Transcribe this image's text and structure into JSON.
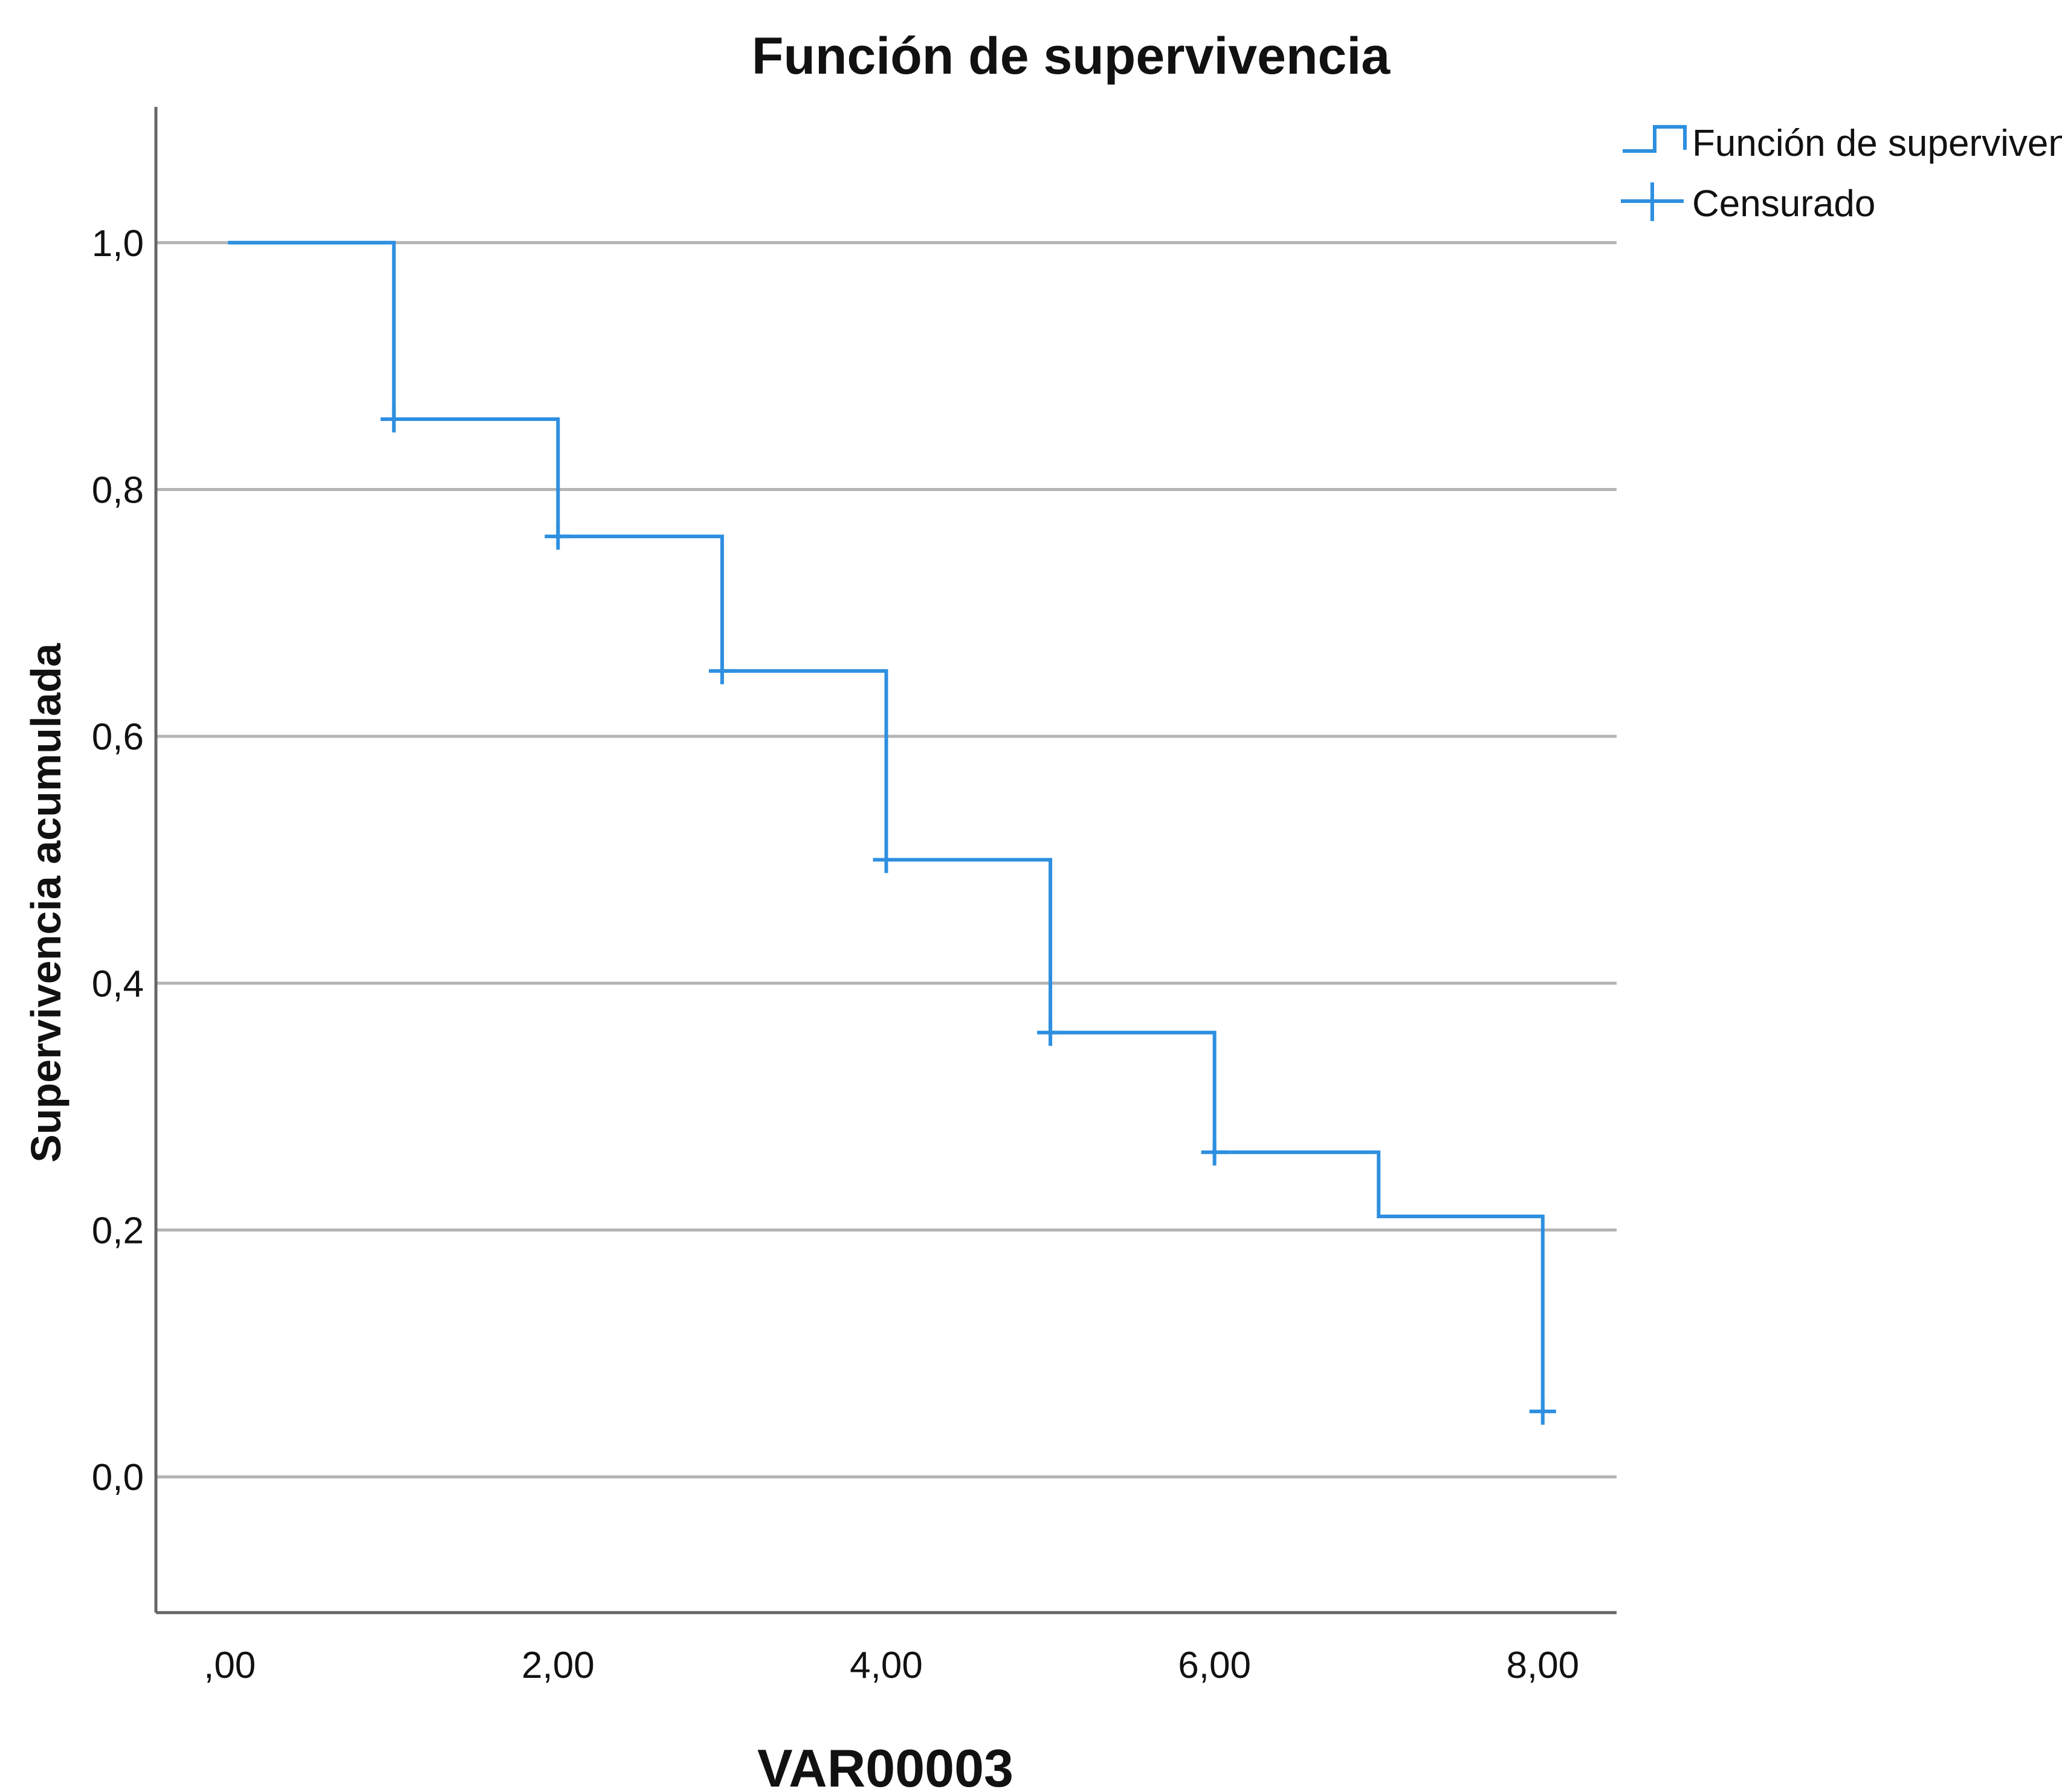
{
  "chart_data": {
    "type": "line",
    "step": true,
    "title": "Función de supervivencia",
    "xlabel": "VAR00003",
    "ylabel": "Supervivencia acumulada",
    "xlim": [
      -0.45,
      8.45
    ],
    "ylim": [
      -0.11,
      1.11
    ],
    "x_ticks": [
      {
        "value": 0,
        "label": ",00"
      },
      {
        "value": 2,
        "label": "2,00"
      },
      {
        "value": 4,
        "label": "4,00"
      },
      {
        "value": 6,
        "label": "6,00"
      },
      {
        "value": 8,
        "label": "8,00"
      }
    ],
    "y_ticks": [
      {
        "value": 0.0,
        "label": "0,0"
      },
      {
        "value": 0.2,
        "label": "0,2"
      },
      {
        "value": 0.4,
        "label": "0,4"
      },
      {
        "value": 0.6,
        "label": "0,6"
      },
      {
        "value": 0.8,
        "label": "0,8"
      },
      {
        "value": 1.0,
        "label": "1,0"
      }
    ],
    "grid": "horizontal",
    "legend_position": "top-right",
    "colors": {
      "series": "#2e8fe0",
      "grid": "#b4b4b4",
      "axis": "#666666",
      "text": "#111111"
    },
    "series": [
      {
        "name": "Función de supervivencia",
        "style": "step",
        "x": [
          0,
          1,
          2,
          3,
          4,
          5,
          6,
          7,
          8
        ],
        "y": [
          1.0,
          0.857,
          0.762,
          0.653,
          0.5,
          0.36,
          0.263,
          0.211,
          0.053
        ]
      },
      {
        "name": "Censurado",
        "style": "marker-plus",
        "x": [
          1,
          2,
          3,
          4,
          5,
          6,
          8
        ],
        "y": [
          0.857,
          0.762,
          0.653,
          0.5,
          0.36,
          0.263,
          0.053
        ]
      }
    ]
  }
}
